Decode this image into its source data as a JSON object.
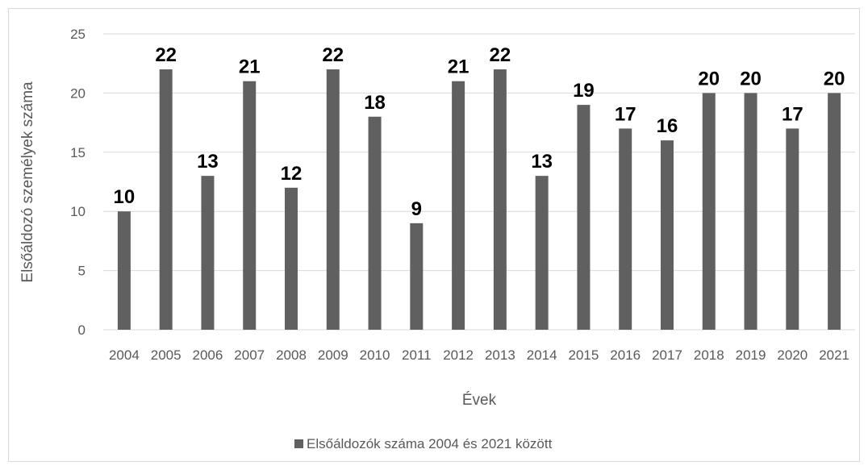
{
  "chart_data": {
    "type": "bar",
    "categories": [
      "2004",
      "2005",
      "2006",
      "2007",
      "2008",
      "2009",
      "2010",
      "2011",
      "2012",
      "2013",
      "2014",
      "2015",
      "2016",
      "2017",
      "2018",
      "2019",
      "2020",
      "2021"
    ],
    "series": [
      {
        "name": "Elsőáldozók száma 2004 és 2021 között",
        "values": [
          10,
          22,
          13,
          21,
          12,
          22,
          18,
          9,
          21,
          22,
          13,
          19,
          17,
          16,
          20,
          20,
          17,
          20
        ]
      }
    ],
    "xlabel": "Évek",
    "ylabel": "Elsőáldozó személyek száma",
    "ylim": [
      0,
      25
    ],
    "yticks": [
      0,
      5,
      10,
      15,
      20,
      25
    ],
    "grid": true,
    "legend_position": "bottom",
    "bar_color": "#606060",
    "grid_color": "#d9d9d9"
  }
}
